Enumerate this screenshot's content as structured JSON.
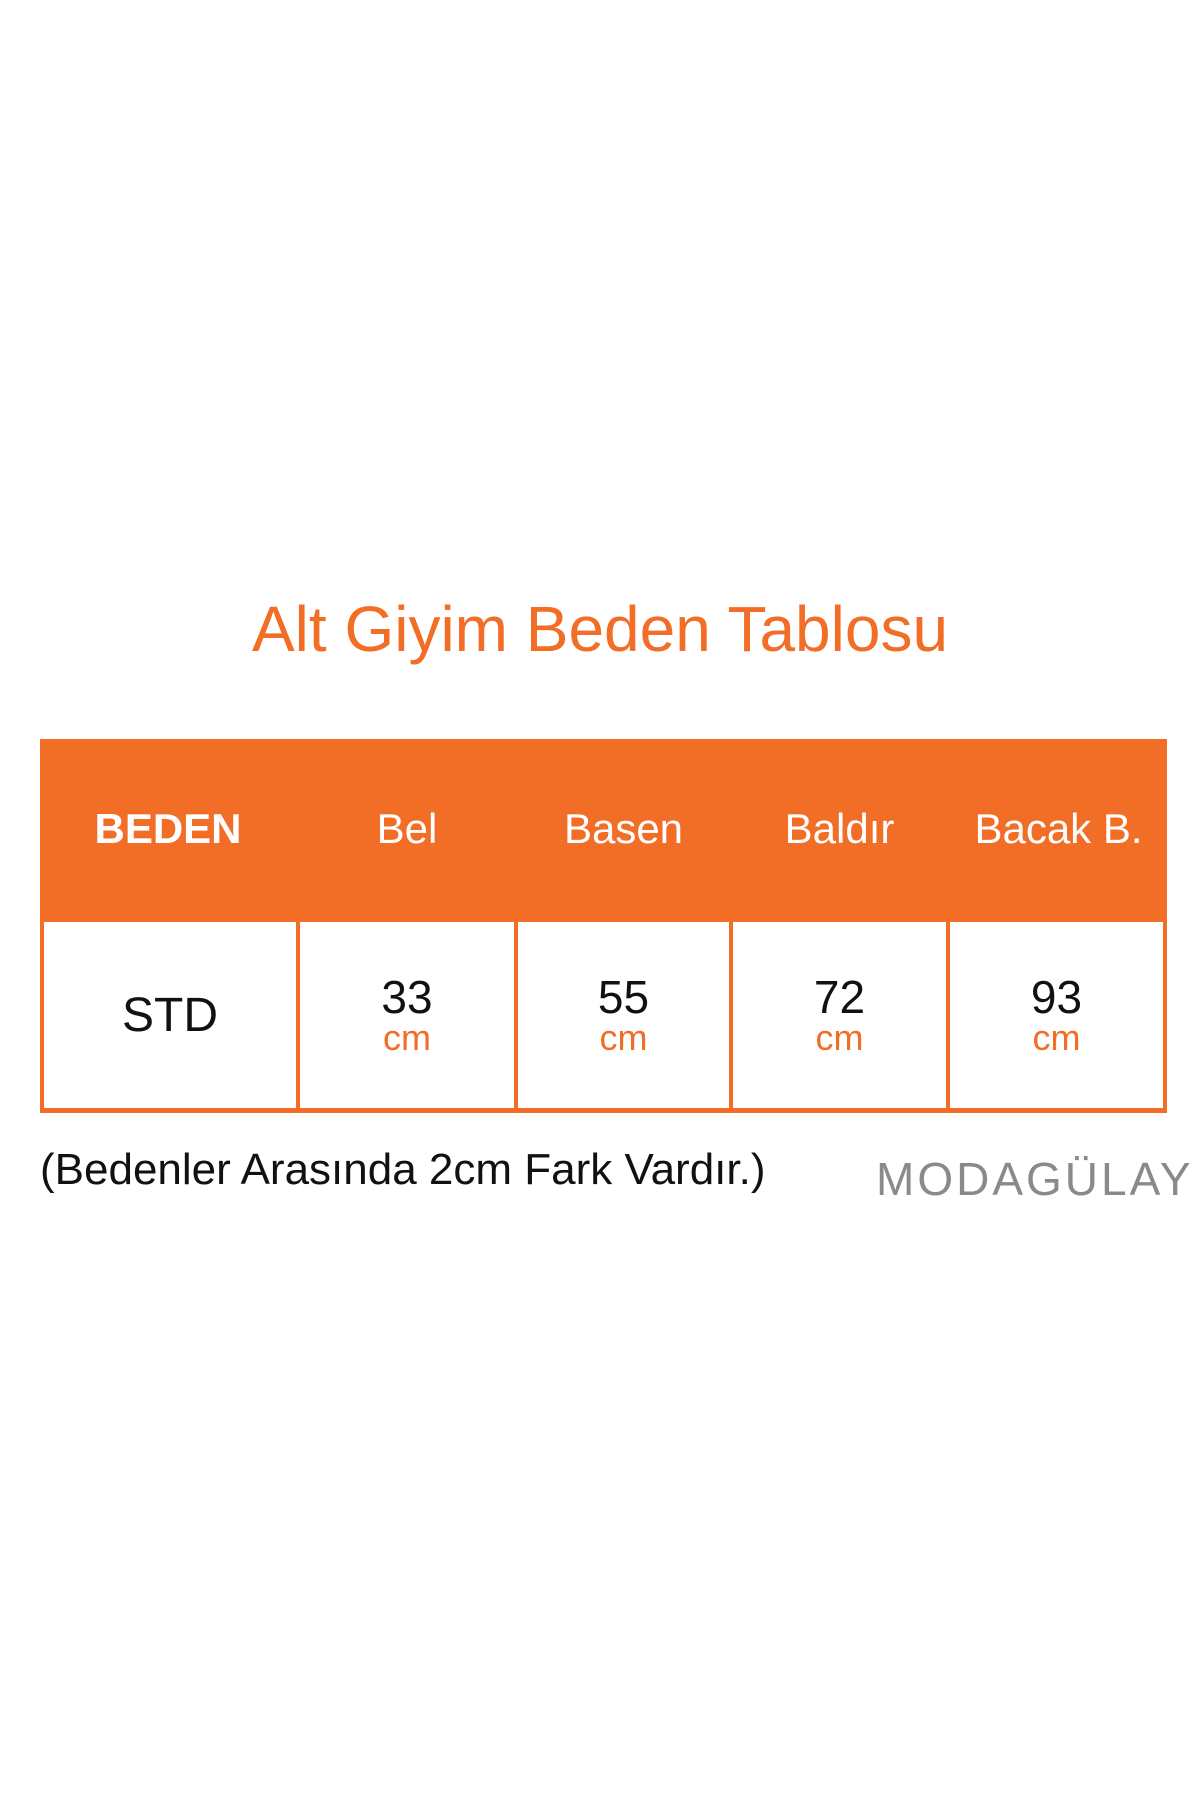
{
  "title": "Alt Giyim Beden Tablosu",
  "table": {
    "headers": [
      "BEDEN",
      "Bel",
      "Basen",
      "Baldır",
      "Bacak B."
    ],
    "rows": [
      {
        "size": "STD",
        "values": [
          "33",
          "55",
          "72",
          "93"
        ],
        "unit": "cm"
      }
    ]
  },
  "note": "(Bedenler Arasında 2cm Fark Vardır.)",
  "logo": "MODAGÜLAY",
  "colors": {
    "accent": "#f26d26",
    "logo": "#8a8a8a"
  }
}
